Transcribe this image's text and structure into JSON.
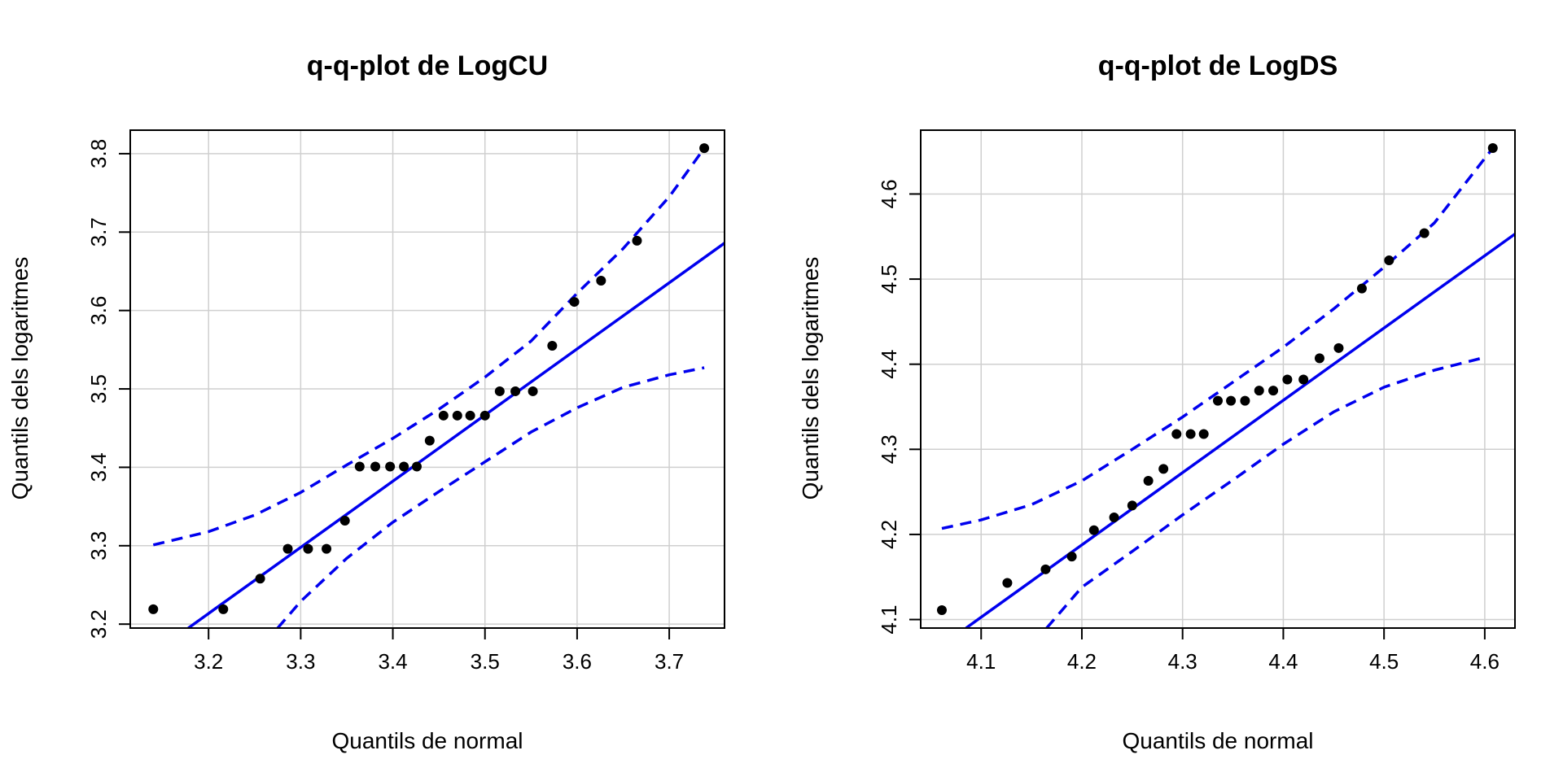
{
  "chart_data": [
    {
      "type": "scatter",
      "title": "q-q-plot de LogCU",
      "xlabel": "Quantils de normal",
      "ylabel": "Quantils dels logaritmes",
      "xlim": [
        3.115,
        3.76
      ],
      "ylim": [
        3.195,
        3.83
      ],
      "xticks": [
        3.2,
        3.3,
        3.4,
        3.5,
        3.6,
        3.7
      ],
      "yticks": [
        3.2,
        3.3,
        3.4,
        3.5,
        3.6,
        3.7,
        3.8
      ],
      "grid": true,
      "point_color": "#000000",
      "line_color": "#0000ee",
      "points": {
        "x": [
          3.14,
          3.216,
          3.256,
          3.286,
          3.308,
          3.328,
          3.348,
          3.364,
          3.381,
          3.397,
          3.412,
          3.426,
          3.44,
          3.455,
          3.47,
          3.484,
          3.5,
          3.516,
          3.533,
          3.552,
          3.573,
          3.597,
          3.626,
          3.665,
          3.738
        ],
        "y": [
          3.219,
          3.219,
          3.258,
          3.296,
          3.296,
          3.296,
          3.332,
          3.401,
          3.401,
          3.401,
          3.401,
          3.401,
          3.434,
          3.466,
          3.466,
          3.466,
          3.466,
          3.497,
          3.497,
          3.497,
          3.555,
          3.611,
          3.638,
          3.689,
          3.807
        ]
      },
      "fit_line": {
        "x": [
          3.178,
          3.76
        ],
        "y": [
          3.195,
          3.686
        ]
      },
      "upper_band": {
        "x": [
          3.14,
          3.2,
          3.25,
          3.3,
          3.35,
          3.4,
          3.45,
          3.5,
          3.55,
          3.6,
          3.65,
          3.7,
          3.738
        ],
        "y": [
          3.301,
          3.318,
          3.339,
          3.368,
          3.403,
          3.437,
          3.474,
          3.515,
          3.561,
          3.622,
          3.679,
          3.745,
          3.807
        ]
      },
      "lower_band": {
        "x": [
          3.275,
          3.3,
          3.35,
          3.4,
          3.45,
          3.5,
          3.55,
          3.6,
          3.65,
          3.7,
          3.738
        ],
        "y": [
          3.195,
          3.229,
          3.284,
          3.33,
          3.369,
          3.407,
          3.445,
          3.476,
          3.502,
          3.518,
          3.527
        ]
      }
    },
    {
      "type": "scatter",
      "title": "q-q-plot de LogDS",
      "xlabel": "Quantils de normal",
      "ylabel": "Quantils dels logaritmes",
      "xlim": [
        4.04,
        4.63
      ],
      "ylim": [
        4.09,
        4.675
      ],
      "xticks": [
        4.1,
        4.2,
        4.3,
        4.4,
        4.5,
        4.6
      ],
      "yticks": [
        4.1,
        4.2,
        4.3,
        4.4,
        4.5,
        4.6
      ],
      "grid": true,
      "point_color": "#000000",
      "line_color": "#0000ee",
      "points": {
        "x": [
          4.061,
          4.126,
          4.164,
          4.19,
          4.212,
          4.232,
          4.25,
          4.266,
          4.281,
          4.294,
          4.308,
          4.321,
          4.335,
          4.348,
          4.362,
          4.376,
          4.39,
          4.404,
          4.42,
          4.436,
          4.455,
          4.478,
          4.505,
          4.54,
          4.608
        ],
        "y": [
          4.111,
          4.143,
          4.159,
          4.174,
          4.205,
          4.22,
          4.234,
          4.263,
          4.277,
          4.318,
          4.318,
          4.318,
          4.357,
          4.357,
          4.357,
          4.369,
          4.369,
          4.382,
          4.382,
          4.407,
          4.419,
          4.489,
          4.522,
          4.554,
          4.654
        ]
      },
      "fit_line": {
        "x": [
          4.085,
          4.63
        ],
        "y": [
          4.09,
          4.553
        ]
      },
      "upper_band": {
        "x": [
          4.061,
          4.1,
          4.15,
          4.2,
          4.25,
          4.3,
          4.35,
          4.4,
          4.45,
          4.5,
          4.55,
          4.608
        ],
        "y": [
          4.207,
          4.217,
          4.235,
          4.263,
          4.3,
          4.338,
          4.379,
          4.42,
          4.465,
          4.514,
          4.566,
          4.654
        ]
      },
      "lower_band": {
        "x": [
          4.165,
          4.2,
          4.25,
          4.3,
          4.35,
          4.4,
          4.45,
          4.5,
          4.55,
          4.6
        ],
        "y": [
          4.09,
          4.138,
          4.18,
          4.223,
          4.264,
          4.306,
          4.344,
          4.373,
          4.393,
          4.408
        ]
      }
    }
  ]
}
